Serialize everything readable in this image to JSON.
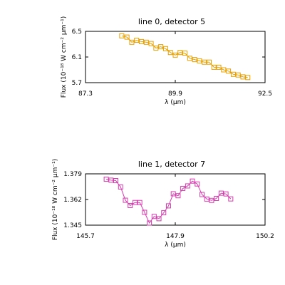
{
  "chart_data": [
    {
      "type": "line",
      "title": "line 0, detector 5",
      "xlabel": "λ (μm)",
      "ylabel": "Flux (10⁻¹⁸ W cm⁻² μm⁻¹)",
      "xlim": [
        87.3,
        92.5
      ],
      "ylim": [
        5.7,
        6.5
      ],
      "xticks": [
        "87.3",
        "89.9",
        "92.5"
      ],
      "yticks": [
        "5.7",
        "6.1",
        "6.5"
      ],
      "marker": "square",
      "color": "#e8a000",
      "series": [
        {
          "x": [
            88.35,
            88.5,
            88.64,
            88.78,
            88.92,
            89.06,
            89.2,
            89.34,
            89.48,
            89.62,
            89.76,
            89.9,
            90.04,
            90.18,
            90.32,
            90.46,
            90.6,
            90.74,
            90.88,
            91.02,
            91.16,
            91.3,
            91.44,
            91.58,
            91.72,
            91.86,
            92.0
          ],
          "values": [
            6.43,
            6.41,
            6.33,
            6.36,
            6.34,
            6.33,
            6.31,
            6.24,
            6.26,
            6.23,
            6.17,
            6.13,
            6.17,
            6.16,
            6.08,
            6.06,
            6.04,
            6.02,
            6.02,
            5.94,
            5.94,
            5.9,
            5.88,
            5.83,
            5.82,
            5.79,
            5.78
          ]
        }
      ]
    },
    {
      "type": "line",
      "title": "line 1, detector 7",
      "xlabel": "λ (μm)",
      "ylabel": "Flux (10⁻¹⁸ W cm⁻² μm⁻¹)",
      "xlim": [
        145.7,
        150.2
      ],
      "ylim": [
        1.345,
        1.379
      ],
      "xticks": [
        "145.7",
        "147.9",
        "150.2"
      ],
      "yticks": [
        "1.345",
        "1.362",
        "1.379"
      ],
      "marker": "square",
      "color": "#d63cae",
      "series": [
        {
          "x": [
            146.22,
            146.34,
            146.46,
            146.58,
            146.7,
            146.82,
            146.94,
            147.06,
            147.18,
            147.3,
            147.42,
            147.54,
            147.66,
            147.78,
            147.9,
            148.02,
            148.14,
            148.26,
            148.38,
            148.5,
            148.62,
            148.74,
            148.86,
            148.98,
            149.1,
            149.22,
            149.34
          ],
          "values": [
            1.3755,
            1.3748,
            1.3745,
            1.3703,
            1.3615,
            1.358,
            1.36,
            1.36,
            1.3535,
            1.3464,
            1.3508,
            1.3493,
            1.3532,
            1.3578,
            1.3658,
            1.3645,
            1.3693,
            1.371,
            1.3742,
            1.3723,
            1.3653,
            1.3623,
            1.3614,
            1.3627,
            1.3662,
            1.3657,
            1.3624
          ]
        }
      ]
    }
  ]
}
